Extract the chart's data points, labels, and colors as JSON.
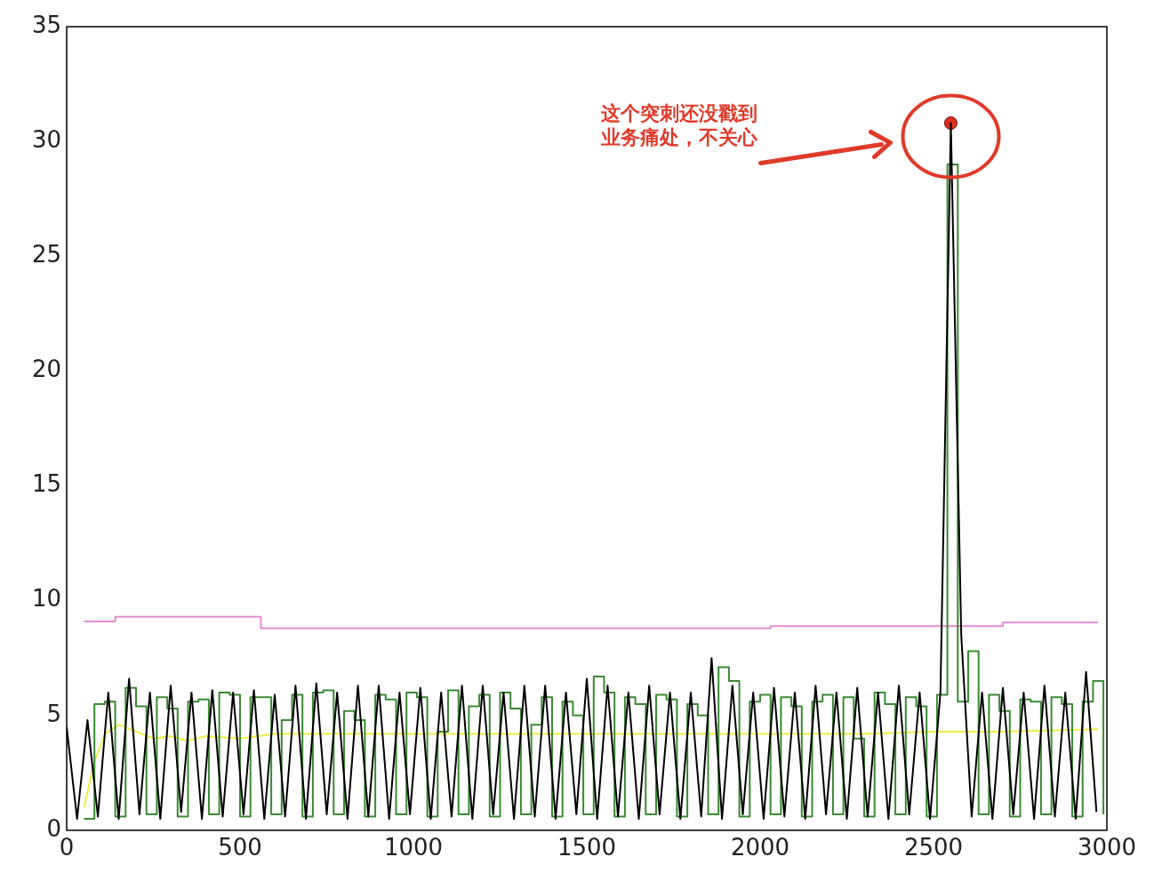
{
  "chart_data": {
    "type": "line",
    "xlim": [
      0,
      3000
    ],
    "xticks": [
      0,
      500,
      1000,
      1500,
      2000,
      2500,
      3000
    ],
    "ylim": [
      0,
      35
    ],
    "yticks": [
      0,
      5,
      10,
      15,
      20,
      25,
      30,
      35
    ],
    "grid": false,
    "legend": false,
    "marker": "none",
    "line_style": "solid",
    "annotations": [
      "这个突刺还没戳到业务痛处，不关心"
    ],
    "series": [
      {
        "color": "#000000",
        "x": [
          0,
          30,
          60,
          90,
          120,
          150,
          180,
          210,
          240,
          270,
          300,
          330,
          360,
          390,
          420,
          450,
          480,
          510,
          540,
          570,
          600,
          630,
          660,
          690,
          720,
          750,
          780,
          810,
          840,
          870,
          900,
          930,
          960,
          990,
          1020,
          1050,
          1080,
          1110,
          1140,
          1170,
          1200,
          1230,
          1260,
          1290,
          1320,
          1350,
          1380,
          1410,
          1440,
          1470,
          1500,
          1530,
          1560,
          1590,
          1620,
          1650,
          1680,
          1710,
          1740,
          1770,
          1800,
          1830,
          1860,
          1890,
          1920,
          1950,
          1980,
          2010,
          2040,
          2070,
          2100,
          2130,
          2160,
          2190,
          2220,
          2250,
          2280,
          2310,
          2340,
          2370,
          2400,
          2430,
          2460,
          2490,
          2520,
          2550,
          2580,
          2610,
          2640,
          2670,
          2700,
          2730,
          2760,
          2790,
          2820,
          2850,
          2880,
          2910,
          2940,
          2970
        ],
        "values": [
          4.5,
          0.5,
          4.8,
          0.6,
          6.0,
          0.5,
          6.6,
          0.7,
          6.0,
          0.5,
          6.3,
          0.8,
          6.0,
          0.5,
          6.1,
          0.6,
          6.0,
          0.7,
          6.1,
          0.5,
          5.9,
          0.6,
          6.3,
          0.5,
          6.4,
          0.7,
          6.0,
          0.5,
          6.3,
          0.6,
          6.3,
          0.5,
          6.0,
          0.7,
          6.2,
          0.5,
          6.0,
          0.6,
          6.3,
          0.5,
          6.3,
          0.7,
          6.0,
          0.5,
          6.3,
          0.6,
          6.3,
          0.5,
          6.0,
          0.7,
          6.6,
          0.5,
          6.3,
          0.6,
          6.0,
          0.5,
          6.3,
          0.7,
          6.0,
          0.5,
          6.0,
          0.6,
          7.5,
          0.5,
          6.3,
          0.7,
          6.0,
          0.5,
          6.2,
          0.6,
          6.0,
          0.5,
          6.3,
          0.7,
          6.0,
          0.5,
          6.2,
          0.6,
          6.0,
          0.5,
          6.3,
          0.7,
          6.0,
          0.5,
          6.0,
          30.8,
          8.5,
          0.6,
          6.0,
          0.5,
          6.2,
          0.7,
          6.0,
          0.5,
          6.3,
          0.6,
          6.0,
          0.5,
          6.9,
          0.8
        ]
      },
      {
        "type": "step",
        "color": "#3a8a32",
        "x": [
          50,
          80,
          110,
          140,
          170,
          200,
          230,
          260,
          290,
          320,
          350,
          380,
          410,
          440,
          470,
          500,
          530,
          560,
          590,
          620,
          650,
          680,
          710,
          740,
          770,
          800,
          830,
          860,
          890,
          920,
          950,
          980,
          1010,
          1040,
          1070,
          1100,
          1130,
          1160,
          1190,
          1220,
          1250,
          1280,
          1310,
          1340,
          1370,
          1400,
          1430,
          1460,
          1490,
          1520,
          1550,
          1580,
          1610,
          1640,
          1670,
          1700,
          1730,
          1760,
          1790,
          1820,
          1850,
          1880,
          1910,
          1940,
          1970,
          2000,
          2030,
          2060,
          2090,
          2120,
          2150,
          2180,
          2210,
          2240,
          2270,
          2300,
          2330,
          2360,
          2390,
          2420,
          2450,
          2480,
          2510,
          2540,
          2570,
          2600,
          2630,
          2660,
          2690,
          2720,
          2750,
          2780,
          2810,
          2840,
          2870,
          2900,
          2930,
          2960,
          2990
        ],
        "values": [
          0.5,
          5.5,
          5.6,
          0.6,
          6.2,
          5.4,
          0.7,
          5.8,
          5.3,
          0.6,
          5.6,
          5.7,
          0.7,
          6.0,
          5.9,
          0.6,
          5.8,
          5.8,
          0.7,
          4.8,
          5.9,
          0.6,
          6.0,
          6.1,
          0.7,
          5.2,
          4.8,
          0.6,
          5.9,
          5.7,
          0.7,
          6.0,
          5.8,
          0.6,
          4.3,
          6.1,
          0.7,
          5.4,
          5.9,
          0.6,
          6.0,
          5.3,
          0.7,
          4.6,
          5.8,
          0.6,
          5.6,
          5.0,
          0.7,
          6.7,
          6.0,
          0.6,
          5.8,
          5.5,
          0.7,
          5.9,
          5.7,
          0.6,
          5.5,
          5.0,
          0.7,
          7.1,
          6.5,
          0.6,
          5.6,
          5.9,
          0.7,
          5.8,
          5.4,
          0.6,
          5.6,
          5.9,
          0.7,
          5.8,
          4.0,
          0.6,
          6.0,
          5.5,
          0.7,
          5.8,
          5.4,
          0.6,
          5.9,
          29,
          5.6,
          7.8,
          0.7,
          5.9,
          5.2,
          0.6,
          5.7,
          5.6,
          0.7,
          5.8,
          5.5,
          0.6,
          5.6,
          6.5,
          0.7
        ]
      },
      {
        "color": "#eeee44",
        "x": [
          50,
          80,
          110,
          150,
          200,
          250,
          300,
          350,
          400,
          500,
          600,
          800,
          1000,
          1500,
          2000,
          2300,
          2500,
          2700,
          2975
        ],
        "values": [
          1.0,
          3.0,
          4.2,
          4.6,
          4.3,
          4.0,
          4.1,
          3.9,
          4.1,
          4.0,
          4.2,
          4.2,
          4.2,
          4.2,
          4.2,
          4.2,
          4.3,
          4.3,
          4.4
        ]
      },
      {
        "type": "step",
        "color": "#e58ccf",
        "x": [
          50,
          140,
          560,
          2030,
          2700,
          2975
        ],
        "values": [
          9.1,
          9.3,
          8.8,
          8.9,
          9.05,
          9.05
        ]
      },
      {
        "type": "scatter",
        "color": "#e03020",
        "marker": "circle",
        "x": [
          2550
        ],
        "values": [
          30.8
        ]
      }
    ]
  }
}
